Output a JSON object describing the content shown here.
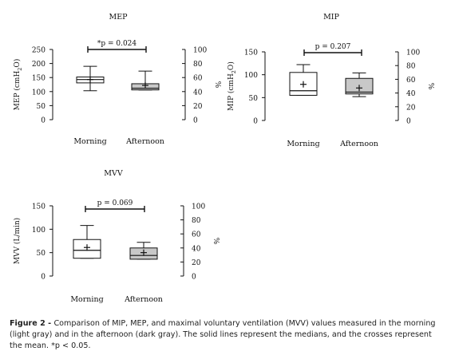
{
  "colors": {
    "morning_fill": "#ffffff",
    "afternoon_fill": "#c8c8c8",
    "stroke": "#111111"
  },
  "caption": {
    "label": "Figure 2 - ",
    "text": "Comparison of MIP, MEP, and maximal voluntary ventilation (MVV) values measured in the morning (light gray) and in the afternoon (dark gray). The solid lines represent the medians, and the crosses represent the mean. *p < 0.05."
  },
  "chart_data": [
    {
      "type": "boxplot",
      "title": "MEP",
      "ylabel": "MEP (cmH2O)",
      "ylabel_main": "MEP (cmH",
      "ylabel_sub": "2",
      "ylabel_end": "O)",
      "ylim": [
        0,
        250
      ],
      "yticks": [
        0,
        50,
        100,
        150,
        200,
        250
      ],
      "y2label": "%",
      "y2ticks": [
        0,
        20,
        40,
        60,
        80,
        100
      ],
      "categories": [
        "Morning",
        "Afternoon"
      ],
      "boxes": [
        {
          "name": "Morning",
          "whisker_low": 103,
          "q1": 131,
          "median": 143,
          "q3": 152,
          "whisker_high": 190,
          "mean": 143
        },
        {
          "name": "Afternoon",
          "whisker_low": 106,
          "q1": 106,
          "median": 112,
          "q3": 128,
          "whisker_high": 173,
          "mean": 122
        }
      ],
      "annotation": "*p = 0.024"
    },
    {
      "type": "boxplot",
      "title": "MIP",
      "ylabel": "MIP (cmH2O)",
      "ylabel_main": "MIP (cmH",
      "ylabel_sub": "2",
      "ylabel_end": "O)",
      "ylim": [
        0,
        150
      ],
      "yticks": [
        0,
        50,
        100,
        150
      ],
      "y2label": "%",
      "y2ticks": [
        0,
        20,
        40,
        60,
        80,
        100
      ],
      "categories": [
        "Morning",
        "Afternoon"
      ],
      "boxes": [
        {
          "name": "Morning",
          "whisker_low": 55,
          "q1": 55,
          "median": 65,
          "q3": 105,
          "whisker_high": 122,
          "mean": 79
        },
        {
          "name": "Afternoon",
          "whisker_low": 52,
          "q1": 58,
          "median": 62,
          "q3": 92,
          "whisker_high": 104,
          "mean": 71
        }
      ],
      "annotation": "p = 0.207"
    },
    {
      "type": "boxplot",
      "title": "MVV",
      "ylabel": "MVV (L/min)",
      "ylabel_main": "MVV (L/min)",
      "ylabel_sub": "",
      "ylabel_end": "",
      "ylim": [
        0,
        150
      ],
      "yticks": [
        0,
        50,
        100,
        150
      ],
      "y2label": "%",
      "y2ticks": [
        0,
        20,
        40,
        60,
        80,
        100
      ],
      "categories": [
        "Morning",
        "Afternoon"
      ],
      "boxes": [
        {
          "name": "Morning",
          "whisker_low": 38,
          "q1": 38,
          "median": 55,
          "q3": 78,
          "whisker_high": 108,
          "mean": 61
        },
        {
          "name": "Afternoon",
          "whisker_low": 36,
          "q1": 36,
          "median": 44,
          "q3": 60,
          "whisker_high": 72,
          "mean": 50
        }
      ],
      "annotation": "p = 0.069"
    }
  ]
}
